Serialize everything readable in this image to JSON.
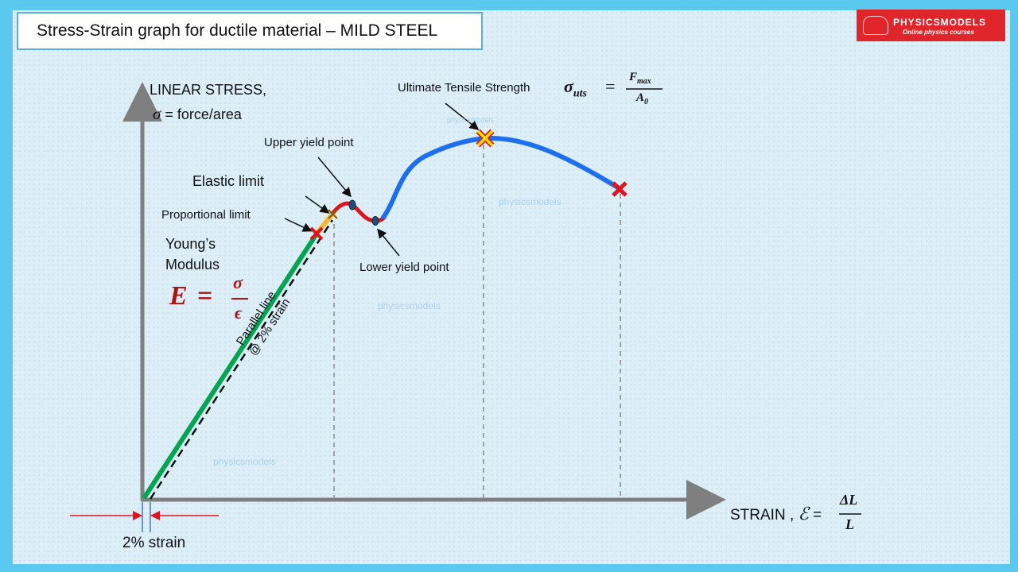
{
  "title": "Stress-Strain graph for ductile material – MILD STEEL",
  "logo": {
    "brand": "PHYSICSMODELS",
    "tagline": "Online physics courses"
  },
  "y_axis": {
    "line1": "LINEAR STRESS,",
    "sigma": "σ",
    "line2": " = force/area"
  },
  "x_axis": {
    "label": "STRAIN , ",
    "epsilon": "ℰ",
    "equals": " = ",
    "numerator": "ΔL",
    "denominator": "L"
  },
  "labels": {
    "uts": "Ultimate Tensile Strength",
    "uts_formula_lhs": "σ",
    "uts_formula_sub": "uts",
    "uts_formula_eq": "=",
    "uts_num": "F",
    "uts_num_sub": "max",
    "uts_den": "A",
    "uts_den_sub": "0",
    "upper_yield": "Upper yield point",
    "elastic_limit": "Elastic limit",
    "proportional_limit": "Proportional limit",
    "youngs_1": "Young’s",
    "youngs_2": "Modulus",
    "E": "E",
    "E_eq": "=",
    "E_num": "σ",
    "E_den": "ϵ",
    "lower_yield": "Lower yield point",
    "parallel_1": "Parallel line",
    "parallel_2": "@ 2% strain",
    "two_percent": "2% strain"
  },
  "watermark": "physicsmodels",
  "colors": {
    "axis": "#7f7f7f",
    "elastic": "#00a650",
    "yield": "#e0141e",
    "plastic": "#1e6ff0",
    "transition": "#f7b731"
  }
}
